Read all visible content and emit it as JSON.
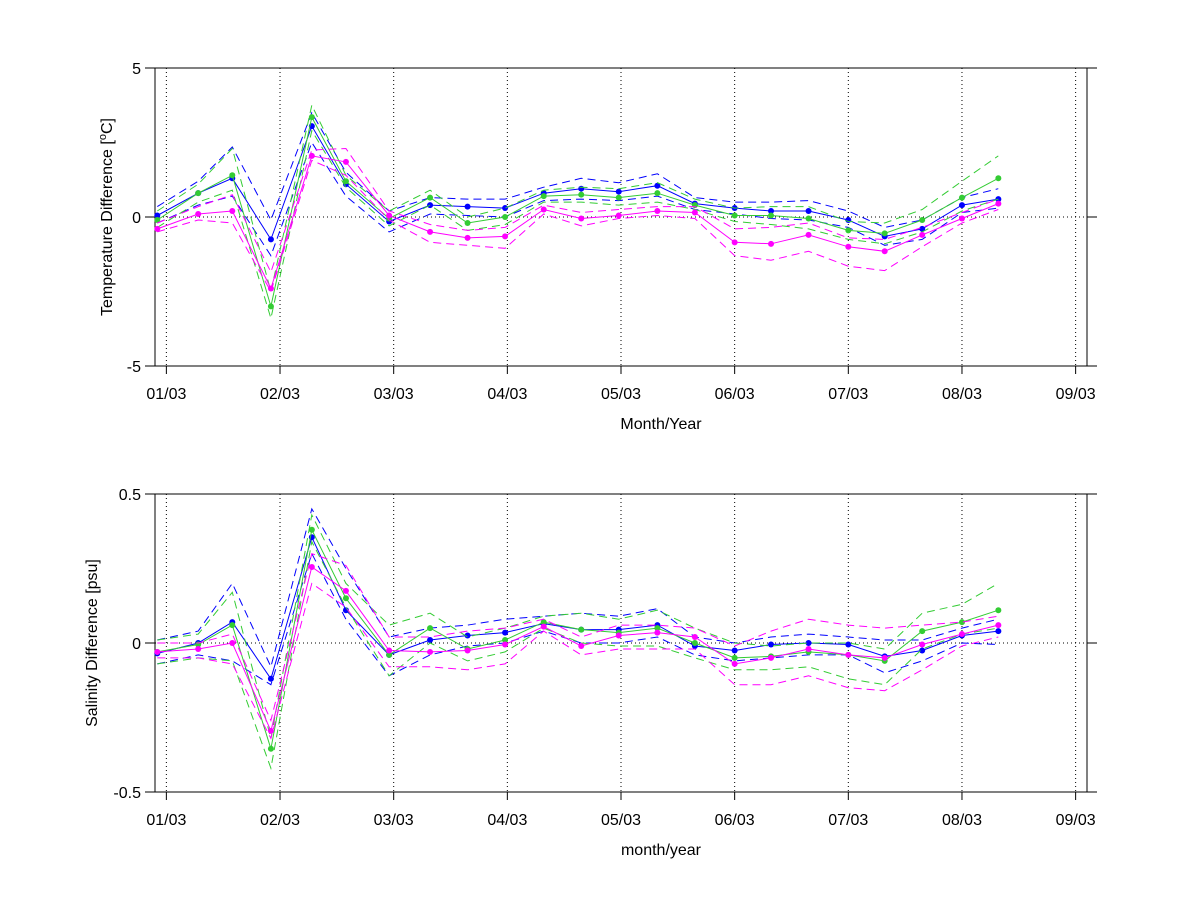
{
  "chart_data": [
    {
      "type": "line",
      "xlabel": "Month/Year",
      "ylabel": "Temperature Difference [°C]",
      "ylabel_parts": [
        "Temperature Difference [",
        "o",
        "C]"
      ],
      "ylim": [
        -5,
        5
      ],
      "yticks": [
        -5,
        0,
        5
      ],
      "xlim": [
        -0.1,
        8.1
      ],
      "xticks": [
        0,
        1,
        2,
        3,
        4,
        5,
        6,
        7,
        8
      ],
      "xtick_labels": [
        "01/03",
        "02/03",
        "03/03",
        "04/03",
        "05/03",
        "06/03",
        "07/03",
        "08/03",
        "09/03"
      ],
      "grid": "dotted vertical lines at month ticks, dotted horizontal zero line",
      "x": [
        -0.08,
        0.28,
        0.58,
        0.92,
        1.28,
        1.58,
        1.96,
        2.32,
        2.65,
        2.98,
        3.32,
        3.65,
        3.98,
        4.32,
        4.65,
        5.0,
        5.32,
        5.65,
        6.0,
        6.32,
        6.65,
        7.0,
        7.32,
        7.62
      ],
      "series": [
        {
          "color": "#0000ff",
          "mean": [
            0.05,
            0.8,
            1.3,
            -0.75,
            3.05,
            1.1,
            -0.15,
            0.4,
            0.35,
            0.3,
            0.8,
            0.95,
            0.85,
            1.05,
            0.45,
            0.3,
            0.2,
            0.2,
            -0.1,
            -0.65,
            -0.4,
            0.4,
            0.6,
            null
          ],
          "upper": [
            0.35,
            1.2,
            2.35,
            -0.1,
            3.5,
            1.5,
            0.2,
            0.65,
            0.6,
            0.6,
            1.0,
            1.3,
            1.15,
            1.45,
            0.65,
            0.5,
            0.5,
            0.55,
            0.2,
            -0.35,
            -0.1,
            0.65,
            0.95,
            null
          ],
          "lower": [
            -0.2,
            0.4,
            0.7,
            -1.3,
            2.5,
            0.7,
            -0.5,
            0.1,
            0.05,
            0.0,
            0.55,
            0.6,
            0.55,
            0.7,
            0.25,
            0.1,
            -0.05,
            -0.1,
            -0.35,
            -0.95,
            -0.75,
            0.15,
            0.3,
            null
          ]
        },
        {
          "color": "#33cc33",
          "mean": [
            -0.1,
            0.8,
            1.4,
            -3.0,
            3.35,
            1.2,
            -0.05,
            0.65,
            -0.2,
            0.0,
            0.7,
            0.75,
            0.65,
            0.8,
            0.4,
            0.05,
            0.05,
            -0.05,
            -0.45,
            -0.55,
            -0.1,
            0.65,
            1.3,
            null
          ],
          "upper": [
            0.2,
            1.1,
            2.3,
            -2.5,
            3.75,
            1.4,
            0.2,
            0.9,
            0.0,
            0.3,
            0.9,
            1.0,
            0.95,
            1.15,
            0.6,
            0.3,
            0.35,
            0.35,
            -0.15,
            -0.2,
            0.25,
            1.2,
            2.05,
            null
          ],
          "lower": [
            -0.35,
            0.5,
            0.9,
            -3.4,
            2.9,
            1.0,
            -0.3,
            0.4,
            -0.45,
            -0.25,
            0.5,
            0.5,
            0.4,
            0.5,
            0.25,
            -0.15,
            -0.25,
            -0.4,
            -0.75,
            -0.9,
            -0.5,
            0.2,
            0.6,
            null
          ]
        },
        {
          "color": "#ff00ff",
          "mean": [
            -0.4,
            0.1,
            0.2,
            -2.4,
            2.05,
            1.85,
            0.05,
            -0.5,
            -0.7,
            -0.65,
            0.25,
            -0.05,
            0.05,
            0.2,
            0.15,
            -0.85,
            -0.9,
            -0.6,
            -1.0,
            -1.15,
            -0.6,
            -0.05,
            0.45,
            null
          ],
          "upper": [
            -0.2,
            0.35,
            0.75,
            -1.85,
            2.25,
            2.3,
            0.2,
            -0.25,
            -0.45,
            -0.35,
            0.4,
            0.15,
            0.25,
            0.35,
            0.35,
            -0.4,
            -0.35,
            -0.2,
            -0.7,
            -0.75,
            -0.35,
            0.15,
            0.6,
            null
          ],
          "lower": [
            -0.5,
            -0.1,
            -0.2,
            -2.5,
            1.9,
            1.4,
            -0.1,
            -0.85,
            -0.95,
            -1.05,
            0.1,
            -0.3,
            -0.05,
            0.05,
            -0.05,
            -1.3,
            -1.45,
            -1.15,
            -1.65,
            -1.8,
            -1.0,
            -0.2,
            0.25,
            null
          ]
        }
      ]
    },
    {
      "type": "line",
      "xlabel": "month/year",
      "ylabel": "Salinity Difference [psu]",
      "ylim": [
        -0.5,
        0.5
      ],
      "yticks": [
        -0.5,
        0,
        0.5
      ],
      "xlim": [
        -0.1,
        8.1
      ],
      "xticks": [
        0,
        1,
        2,
        3,
        4,
        5,
        6,
        7,
        8
      ],
      "xtick_labels": [
        "01/03",
        "02/03",
        "03/03",
        "04/03",
        "05/03",
        "06/03",
        "07/03",
        "08/03",
        "09/03"
      ],
      "grid": "dotted vertical lines at month ticks, dotted horizontal zero line",
      "x": [
        -0.08,
        0.28,
        0.58,
        0.92,
        1.28,
        1.58,
        1.96,
        2.32,
        2.65,
        2.98,
        3.32,
        3.65,
        3.98,
        4.32,
        4.65,
        5.0,
        5.32,
        5.65,
        6.0,
        6.32,
        6.65,
        7.0,
        7.32,
        7.62
      ],
      "series": [
        {
          "color": "#0000ff",
          "mean": [
            -0.035,
            0.0,
            0.07,
            -0.12,
            0.355,
            0.11,
            -0.04,
            0.01,
            0.025,
            0.035,
            0.065,
            0.045,
            0.045,
            0.06,
            -0.01,
            -0.025,
            -0.005,
            0.0,
            -0.005,
            -0.045,
            -0.025,
            0.025,
            0.04,
            null
          ],
          "upper": [
            0.01,
            0.04,
            0.2,
            -0.08,
            0.45,
            0.25,
            0.02,
            0.05,
            0.06,
            0.08,
            0.09,
            0.1,
            0.09,
            0.115,
            0.02,
            0.0,
            0.02,
            0.03,
            0.02,
            0.01,
            0.01,
            0.05,
            0.08,
            null
          ],
          "lower": [
            -0.07,
            -0.04,
            -0.06,
            -0.14,
            0.3,
            0.08,
            -0.11,
            -0.04,
            -0.01,
            0.0,
            0.04,
            0.0,
            0.0,
            0.02,
            -0.04,
            -0.06,
            -0.05,
            -0.04,
            -0.04,
            -0.1,
            -0.06,
            0.0,
            -0.005,
            null
          ]
        },
        {
          "color": "#33cc33",
          "mean": [
            -0.03,
            -0.005,
            0.06,
            -0.355,
            0.38,
            0.15,
            -0.04,
            0.05,
            -0.02,
            0.01,
            0.07,
            0.045,
            0.035,
            0.05,
            0.0,
            -0.05,
            -0.045,
            -0.03,
            -0.04,
            -0.06,
            0.04,
            0.07,
            0.11,
            null
          ],
          "upper": [
            0.01,
            0.03,
            0.17,
            -0.32,
            0.43,
            0.2,
            0.06,
            0.1,
            0.02,
            0.05,
            0.09,
            0.1,
            0.08,
            0.11,
            0.05,
            0.0,
            -0.01,
            0.0,
            0.0,
            -0.02,
            0.1,
            0.13,
            0.2,
            null
          ],
          "lower": [
            -0.07,
            -0.05,
            -0.06,
            -0.42,
            0.34,
            0.12,
            -0.11,
            0.0,
            -0.06,
            -0.03,
            0.05,
            0.0,
            -0.01,
            -0.01,
            -0.05,
            -0.09,
            -0.09,
            -0.08,
            -0.12,
            -0.14,
            -0.02,
            0.03,
            0.05,
            null
          ]
        },
        {
          "color": "#ff00ff",
          "mean": [
            -0.03,
            -0.02,
            0.0,
            -0.295,
            0.255,
            0.175,
            -0.025,
            -0.03,
            -0.025,
            -0.005,
            0.055,
            -0.01,
            0.025,
            0.035,
            0.02,
            -0.07,
            -0.05,
            -0.02,
            -0.04,
            -0.05,
            -0.005,
            0.03,
            0.06,
            null
          ],
          "upper": [
            0.0,
            0.0,
            0.03,
            -0.26,
            0.3,
            0.26,
            0.02,
            0.02,
            0.04,
            0.05,
            0.08,
            0.02,
            0.06,
            0.06,
            0.05,
            -0.01,
            0.04,
            0.08,
            0.06,
            0.05,
            0.06,
            0.07,
            0.09,
            null
          ],
          "lower": [
            -0.05,
            -0.05,
            -0.07,
            -0.32,
            0.2,
            0.12,
            -0.08,
            -0.08,
            -0.09,
            -0.07,
            0.04,
            -0.04,
            -0.02,
            -0.02,
            -0.02,
            -0.14,
            -0.14,
            -0.11,
            -0.15,
            -0.16,
            -0.09,
            -0.01,
            0.02,
            null
          ]
        }
      ]
    }
  ]
}
